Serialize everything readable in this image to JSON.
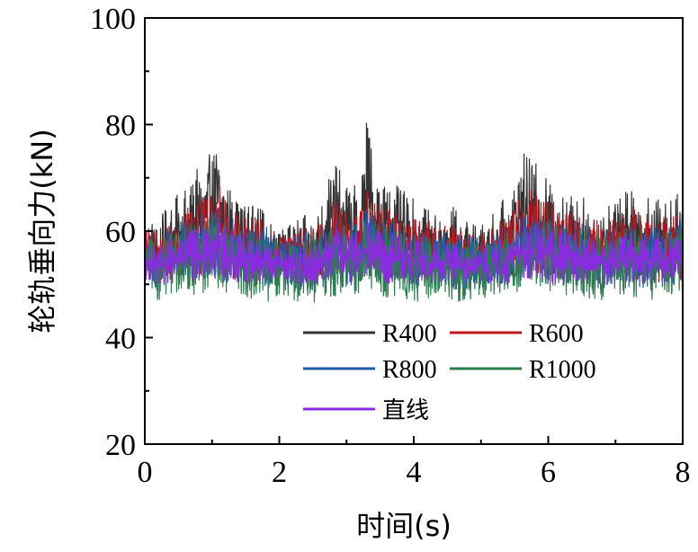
{
  "chart_data": {
    "type": "line",
    "xlabel": "时间(s)",
    "ylabel": "轮轨垂向力(kN)",
    "xlim": [
      0,
      8
    ],
    "ylim": [
      20,
      100
    ],
    "x_ticks": [
      "0",
      "2",
      "4",
      "6",
      "8"
    ],
    "y_ticks": [
      "20",
      "40",
      "60",
      "80",
      "100"
    ],
    "grid": false,
    "legend_position": "bottom-center",
    "series": [
      {
        "name": "R400",
        "color": "#333333",
        "x": [
          0,
          0.2,
          0.4,
          0.6,
          0.8,
          1.0,
          1.1,
          1.2,
          1.4,
          1.6,
          1.8,
          2.0,
          2.2,
          2.4,
          2.6,
          2.8,
          3.0,
          3.2,
          3.3,
          3.4,
          3.6,
          3.8,
          4.0,
          4.2,
          4.4,
          4.6,
          4.8,
          5.0,
          5.2,
          5.4,
          5.6,
          5.8,
          6.0,
          6.2,
          6.4,
          6.6,
          6.8,
          7.0,
          7.2,
          7.4,
          7.6,
          7.8,
          8.0
        ],
        "y_high": [
          63,
          62,
          66,
          68,
          72,
          75,
          79,
          70,
          66,
          65,
          64,
          60,
          62,
          63,
          65,
          73,
          70,
          68,
          84,
          73,
          70,
          68,
          66,
          64,
          63,
          65,
          62,
          61,
          64,
          67,
          75,
          73,
          70,
          68,
          67,
          66,
          64,
          66,
          70,
          68,
          66,
          66,
          68
        ],
        "y_low": [
          53,
          49,
          52,
          51,
          52,
          53,
          52,
          51,
          51,
          50,
          50,
          52,
          51,
          49,
          50,
          52,
          50,
          52,
          53,
          52,
          51,
          51,
          50,
          51,
          51,
          50,
          49,
          50,
          51,
          51,
          52,
          52,
          51,
          51,
          51,
          50,
          50,
          51,
          51,
          50,
          50,
          51,
          50
        ]
      },
      {
        "name": "R600",
        "color": "#c0151d",
        "x": [
          0,
          0.2,
          0.4,
          0.6,
          0.8,
          1.0,
          1.1,
          1.2,
          1.4,
          1.6,
          1.8,
          2.0,
          2.2,
          2.4,
          2.6,
          2.8,
          3.0,
          3.2,
          3.3,
          3.4,
          3.6,
          3.8,
          4.0,
          4.2,
          4.4,
          4.6,
          4.8,
          5.0,
          5.2,
          5.4,
          5.6,
          5.8,
          6.0,
          6.2,
          6.4,
          6.6,
          6.8,
          7.0,
          7.2,
          7.4,
          7.6,
          7.8,
          8.0
        ],
        "y_high": [
          61,
          60,
          63,
          64,
          66,
          67,
          69,
          66,
          64,
          63,
          62,
          59,
          60,
          61,
          62,
          66,
          65,
          64,
          70,
          66,
          65,
          64,
          63,
          62,
          61,
          62,
          60,
          60,
          62,
          63,
          67,
          68,
          66,
          65,
          64,
          63,
          62,
          63,
          65,
          64,
          63,
          63,
          64
        ],
        "y_low": [
          52,
          49,
          51,
          51,
          51,
          52,
          52,
          51,
          51,
          50,
          50,
          51,
          51,
          49,
          50,
          51,
          50,
          51,
          52,
          51,
          51,
          51,
          50,
          51,
          51,
          50,
          49,
          50,
          51,
          51,
          51,
          52,
          51,
          51,
          51,
          50,
          50,
          51,
          51,
          50,
          50,
          51,
          50
        ]
      },
      {
        "name": "R800",
        "color": "#1f5aa6",
        "x": [
          0,
          0.2,
          0.4,
          0.6,
          0.8,
          1.0,
          1.1,
          1.2,
          1.4,
          1.6,
          1.8,
          2.0,
          2.2,
          2.4,
          2.6,
          2.8,
          3.0,
          3.2,
          3.3,
          3.4,
          3.6,
          3.8,
          4.0,
          4.2,
          4.4,
          4.6,
          4.8,
          5.0,
          5.2,
          5.4,
          5.6,
          5.8,
          6.0,
          6.2,
          6.4,
          6.6,
          6.8,
          7.0,
          7.2,
          7.4,
          7.6,
          7.8,
          8.0
        ],
        "y_high": [
          60,
          59,
          61,
          62,
          63,
          64,
          65,
          63,
          62,
          61,
          61,
          58,
          59,
          60,
          61,
          63,
          62,
          62,
          65,
          63,
          62,
          62,
          61,
          60,
          60,
          60,
          59,
          59,
          60,
          61,
          63,
          64,
          63,
          62,
          62,
          61,
          60,
          61,
          62,
          62,
          61,
          61,
          62
        ],
        "y_low": [
          51,
          48,
          50,
          50,
          50,
          51,
          51,
          50,
          50,
          49,
          49,
          50,
          50,
          48,
          49,
          50,
          49,
          50,
          51,
          50,
          50,
          50,
          49,
          50,
          50,
          49,
          48,
          49,
          50,
          50,
          50,
          51,
          50,
          50,
          50,
          49,
          49,
          50,
          50,
          49,
          49,
          50,
          49
        ]
      },
      {
        "name": "R1000",
        "color": "#2e7d4f",
        "x": [
          0,
          0.2,
          0.4,
          0.6,
          0.8,
          1.0,
          1.1,
          1.2,
          1.4,
          1.6,
          1.8,
          2.0,
          2.2,
          2.4,
          2.6,
          2.8,
          3.0,
          3.2,
          3.3,
          3.4,
          3.6,
          3.8,
          4.0,
          4.2,
          4.4,
          4.6,
          4.8,
          5.0,
          5.2,
          5.4,
          5.6,
          5.8,
          6.0,
          6.2,
          6.4,
          6.6,
          6.8,
          7.0,
          7.2,
          7.4,
          7.6,
          7.8,
          8.0
        ],
        "y_high": [
          59,
          58,
          60,
          61,
          62,
          63,
          64,
          62,
          61,
          60,
          60,
          58,
          58,
          59,
          60,
          62,
          61,
          61,
          63,
          62,
          61,
          61,
          60,
          59,
          59,
          59,
          58,
          58,
          59,
          60,
          62,
          63,
          62,
          61,
          61,
          60,
          59,
          60,
          61,
          61,
          60,
          60,
          61
        ],
        "y_low": [
          49,
          47,
          48,
          48,
          48,
          49,
          49,
          48,
          48,
          47,
          46,
          48,
          47,
          45,
          46,
          48,
          46,
          48,
          49,
          48,
          47,
          47,
          46,
          47,
          47,
          46,
          47,
          47,
          48,
          48,
          48,
          49,
          48,
          48,
          48,
          47,
          47,
          48,
          48,
          47,
          47,
          48,
          47
        ]
      },
      {
        "name": "直线",
        "color": "#8a2be2",
        "x": [
          0,
          0.2,
          0.4,
          0.6,
          0.8,
          1.0,
          1.1,
          1.2,
          1.4,
          1.6,
          1.8,
          2.0,
          2.2,
          2.4,
          2.6,
          2.8,
          3.0,
          3.2,
          3.3,
          3.4,
          3.6,
          3.8,
          4.0,
          4.2,
          4.4,
          4.6,
          4.8,
          5.0,
          5.2,
          5.4,
          5.6,
          5.8,
          6.0,
          6.2,
          6.4,
          6.6,
          6.8,
          7.0,
          7.2,
          7.4,
          7.6,
          7.8,
          8.0
        ],
        "y_high": [
          58,
          57,
          59,
          60,
          61,
          61,
          62,
          61,
          60,
          59,
          59,
          57,
          57,
          58,
          59,
          61,
          60,
          60,
          62,
          61,
          60,
          60,
          59,
          58,
          58,
          58,
          57,
          57,
          58,
          59,
          61,
          62,
          61,
          60,
          60,
          59,
          58,
          59,
          60,
          60,
          59,
          59,
          60
        ],
        "y_low": [
          51,
          49,
          50,
          50,
          50,
          51,
          51,
          50,
          50,
          50,
          50,
          51,
          50,
          49,
          50,
          51,
          50,
          51,
          51,
          51,
          50,
          50,
          50,
          51,
          50,
          50,
          49,
          50,
          50,
          50,
          51,
          51,
          50,
          50,
          50,
          50,
          50,
          50,
          50,
          50,
          50,
          50,
          50
        ]
      }
    ]
  }
}
